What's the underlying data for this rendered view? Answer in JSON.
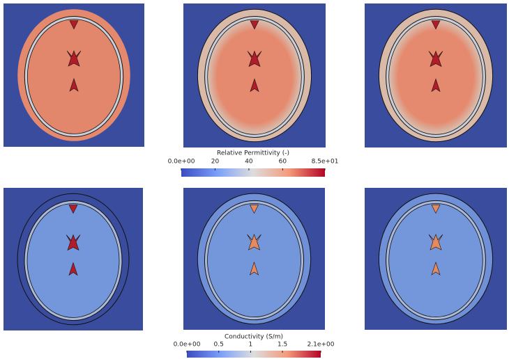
{
  "colorbars": [
    {
      "title": "Relative Permittivity (-)",
      "range": [
        0,
        85
      ],
      "ticks": [
        {
          "value": 0,
          "label": "0.0e+00"
        },
        20,
        40,
        60,
        {
          "value": 85,
          "label": "8.5e+01"
        }
      ]
    },
    {
      "title": "Conductivity (S/m)",
      "range": [
        0,
        2.1
      ],
      "ticks": [
        {
          "value": 0,
          "label": "0.0e+00"
        },
        0.5,
        1,
        1.5,
        {
          "value": 2.1,
          "label": "2.1e+00"
        }
      ]
    }
  ]
}
